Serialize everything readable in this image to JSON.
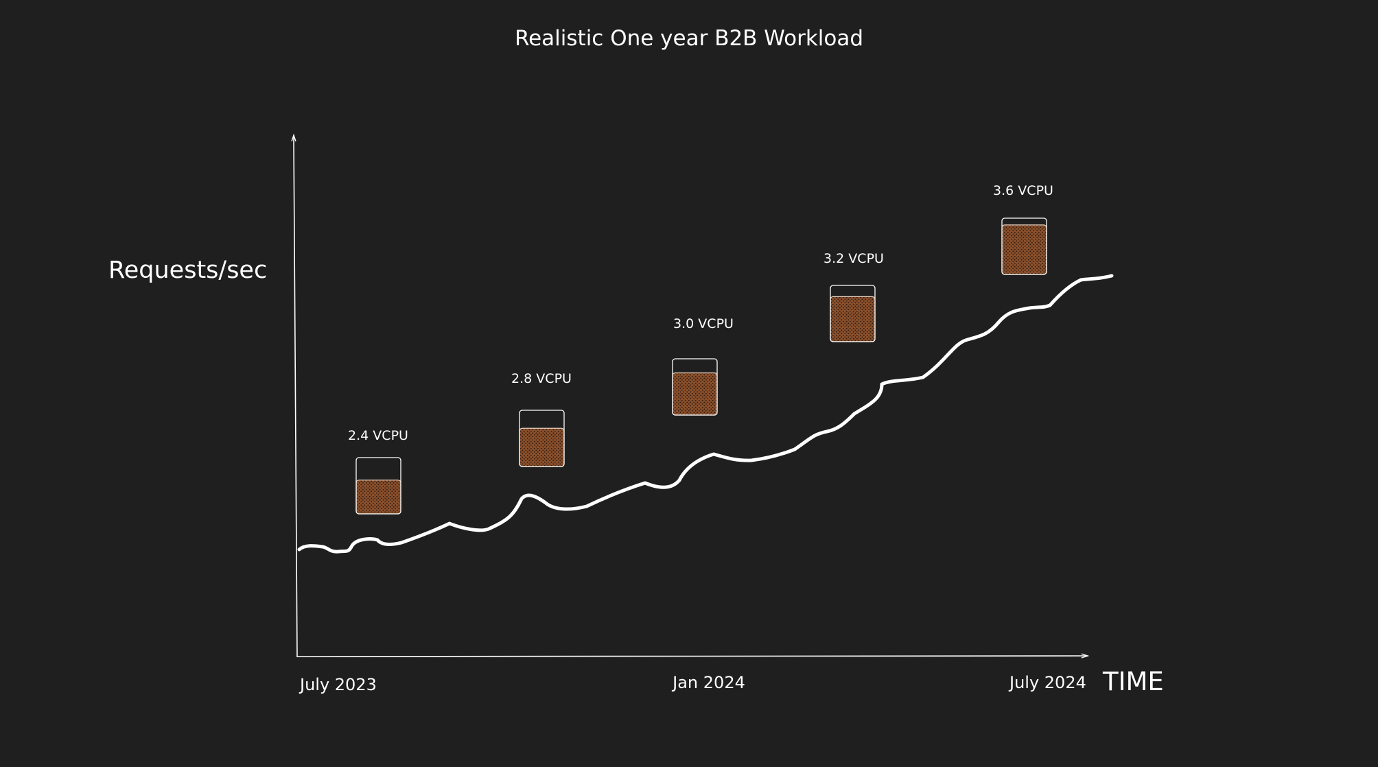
{
  "title": "Realistic One year B2B Workload",
  "y_axis_label": "Requests/sec",
  "x_axis_label": "TIME",
  "time_labels": [
    "July 2023",
    "Jan 2024",
    "July 2024"
  ],
  "cpu_markers": [
    {
      "label": "2.4 VCPU",
      "fill_fraction": 0.6
    },
    {
      "label": "2.8 VCPU",
      "fill_fraction": 0.68
    },
    {
      "label": "3.0 VCPU",
      "fill_fraction": 0.75
    },
    {
      "label": "3.2 VCPU",
      "fill_fraction": 0.8
    },
    {
      "label": "3.6 VCPU",
      "fill_fraction": 0.88
    }
  ],
  "colors": {
    "background": "#1f1f1f",
    "line": "#ffffff",
    "cpu_fill": "#8a4f2b",
    "cpu_fill_dots": "#2a1a10"
  }
}
